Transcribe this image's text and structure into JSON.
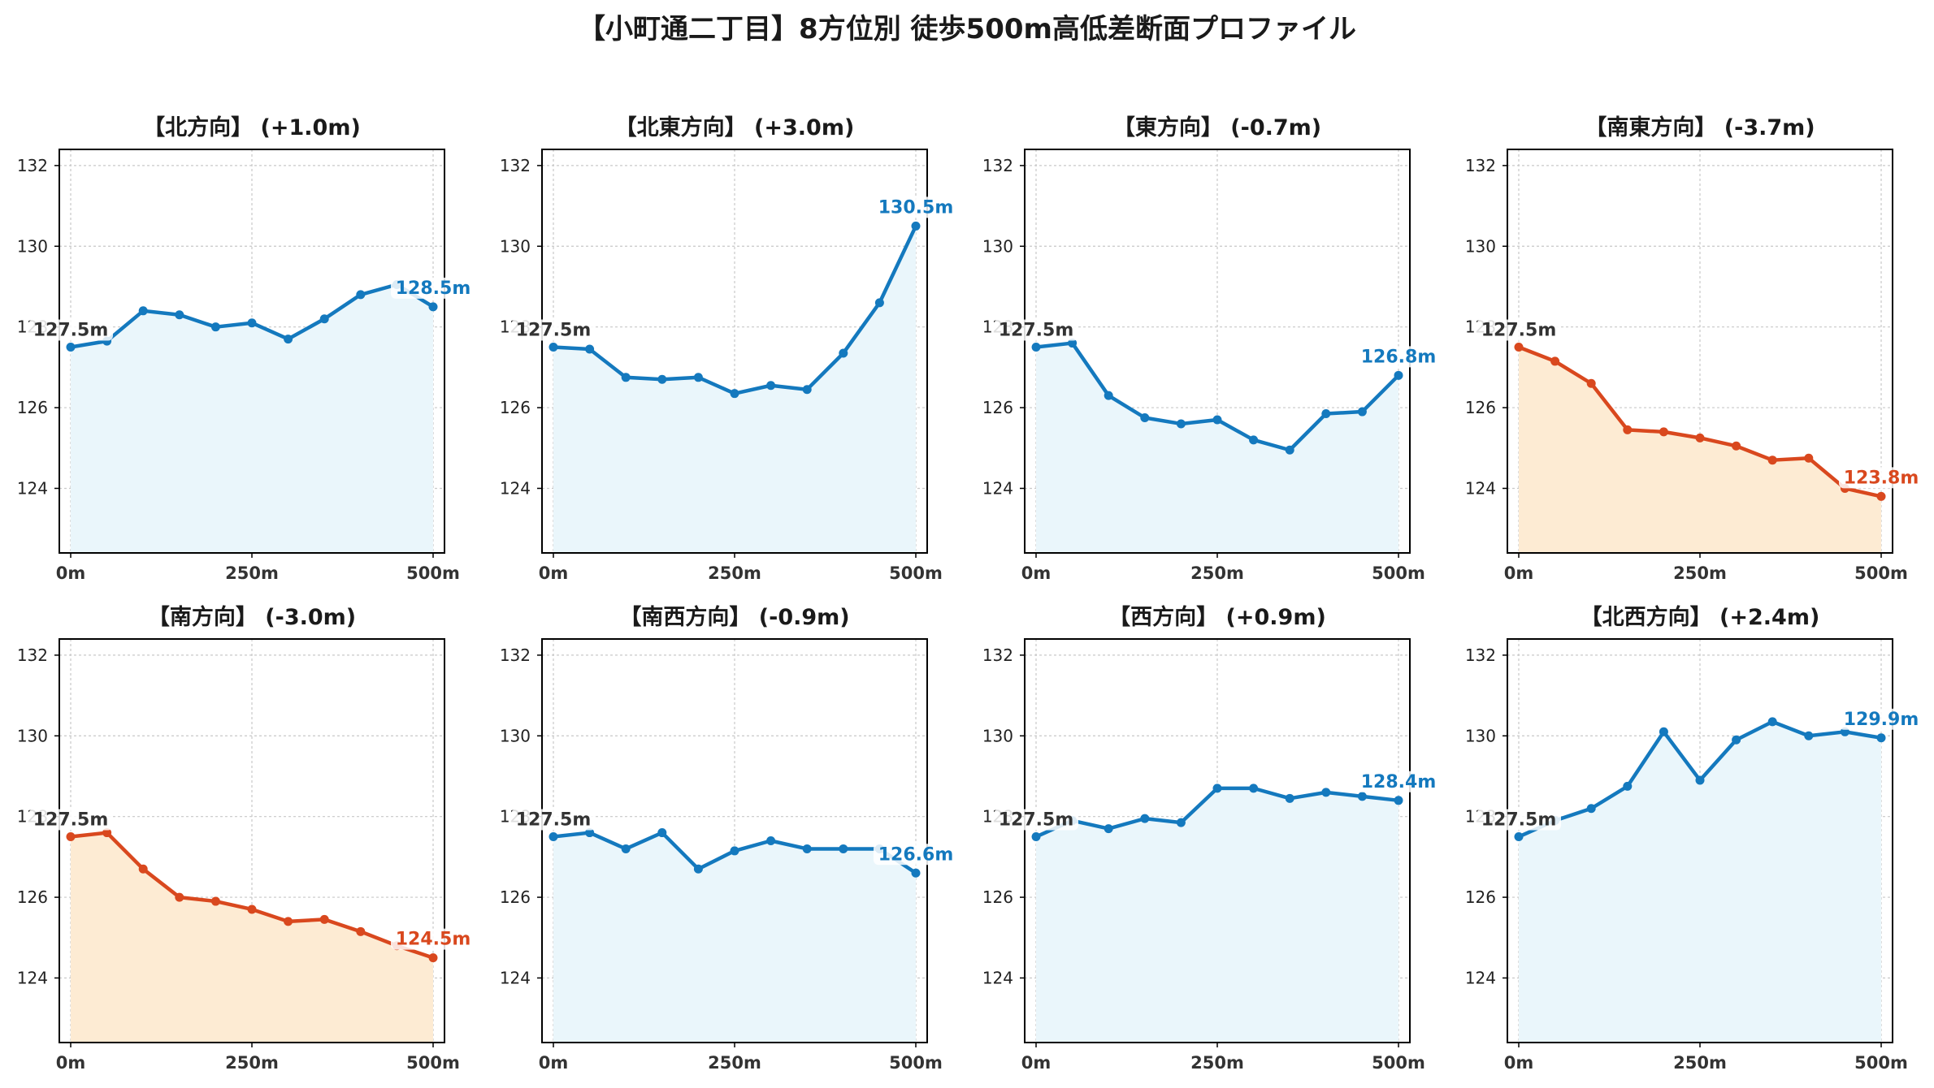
{
  "title": "【小町通二丁目】8方位別 徒歩500m高低差断面プロファイル",
  "colors": {
    "up": "#1479BE",
    "up_fill": "#EAF6FB",
    "down": "#D9481E",
    "down_fill": "#FDEBD3",
    "start_label": "#333333"
  },
  "chart_data": [
    {
      "type": "line",
      "title": "【北方向】 (+1.0m)",
      "trend": "up",
      "start_label": "127.5m",
      "end_label": "128.5m",
      "x": [
        0,
        50,
        100,
        150,
        200,
        250,
        300,
        350,
        400,
        450,
        500
      ],
      "xticks": [
        "0m",
        "250m",
        "500m"
      ],
      "yticks": [
        124,
        126,
        128,
        130,
        132
      ],
      "ylim": [
        122.4,
        132.4
      ],
      "values": [
        127.5,
        127.65,
        128.4,
        128.3,
        128.0,
        128.1,
        127.7,
        128.2,
        128.8,
        129.05,
        128.5
      ]
    },
    {
      "type": "line",
      "title": "【北東方向】 (+3.0m)",
      "trend": "up",
      "start_label": "127.5m",
      "end_label": "130.5m",
      "x": [
        0,
        50,
        100,
        150,
        200,
        250,
        300,
        350,
        400,
        450,
        500
      ],
      "xticks": [
        "0m",
        "250m",
        "500m"
      ],
      "yticks": [
        124,
        126,
        128,
        130,
        132
      ],
      "ylim": [
        122.4,
        132.4
      ],
      "values": [
        127.5,
        127.45,
        126.75,
        126.7,
        126.75,
        126.35,
        126.55,
        126.45,
        127.35,
        128.6,
        130.5
      ]
    },
    {
      "type": "line",
      "title": "【東方向】 (-0.7m)",
      "trend": "up",
      "start_label": "127.5m",
      "end_label": "126.8m",
      "x": [
        0,
        50,
        100,
        150,
        200,
        250,
        300,
        350,
        400,
        450,
        500
      ],
      "xticks": [
        "0m",
        "250m",
        "500m"
      ],
      "yticks": [
        124,
        126,
        128,
        130,
        132
      ],
      "ylim": [
        122.4,
        132.4
      ],
      "values": [
        127.5,
        127.6,
        126.3,
        125.75,
        125.6,
        125.7,
        125.2,
        124.95,
        125.85,
        125.9,
        126.8
      ]
    },
    {
      "type": "line",
      "title": "【南東方向】 (-3.7m)",
      "trend": "down",
      "start_label": "127.5m",
      "end_label": "123.8m",
      "x": [
        0,
        50,
        100,
        150,
        200,
        250,
        300,
        350,
        400,
        450,
        500
      ],
      "xticks": [
        "0m",
        "250m",
        "500m"
      ],
      "yticks": [
        124,
        126,
        128,
        130,
        132
      ],
      "ylim": [
        122.4,
        132.4
      ],
      "values": [
        127.5,
        127.15,
        126.6,
        125.45,
        125.4,
        125.25,
        125.05,
        124.7,
        124.75,
        124.0,
        123.8
      ]
    },
    {
      "type": "line",
      "title": "【南方向】 (-3.0m)",
      "trend": "down",
      "start_label": "127.5m",
      "end_label": "124.5m",
      "x": [
        0,
        50,
        100,
        150,
        200,
        250,
        300,
        350,
        400,
        450,
        500
      ],
      "xticks": [
        "0m",
        "250m",
        "500m"
      ],
      "yticks": [
        124,
        126,
        128,
        130,
        132
      ],
      "ylim": [
        122.4,
        132.4
      ],
      "values": [
        127.5,
        127.6,
        126.7,
        126.0,
        125.9,
        125.7,
        125.4,
        125.45,
        125.15,
        124.8,
        124.5
      ]
    },
    {
      "type": "line",
      "title": "【南西方向】 (-0.9m)",
      "trend": "up",
      "start_label": "127.5m",
      "end_label": "126.6m",
      "x": [
        0,
        50,
        100,
        150,
        200,
        250,
        300,
        350,
        400,
        450,
        500
      ],
      "xticks": [
        "0m",
        "250m",
        "500m"
      ],
      "yticks": [
        124,
        126,
        128,
        130,
        132
      ],
      "ylim": [
        122.4,
        132.4
      ],
      "values": [
        127.5,
        127.6,
        127.2,
        127.6,
        126.7,
        127.15,
        127.4,
        127.2,
        127.2,
        127.2,
        126.6
      ]
    },
    {
      "type": "line",
      "title": "【西方向】 (+0.9m)",
      "trend": "up",
      "start_label": "127.5m",
      "end_label": "128.4m",
      "x": [
        0,
        50,
        100,
        150,
        200,
        250,
        300,
        350,
        400,
        450,
        500
      ],
      "xticks": [
        "0m",
        "250m",
        "500m"
      ],
      "yticks": [
        124,
        126,
        128,
        130,
        132
      ],
      "ylim": [
        122.4,
        132.4
      ],
      "values": [
        127.5,
        127.9,
        127.7,
        127.95,
        127.85,
        128.7,
        128.7,
        128.45,
        128.6,
        128.5,
        128.4
      ]
    },
    {
      "type": "line",
      "title": "【北西方向】 (+2.4m)",
      "trend": "up",
      "start_label": "127.5m",
      "end_label": "129.9m",
      "x": [
        0,
        50,
        100,
        150,
        200,
        250,
        300,
        350,
        400,
        450,
        500
      ],
      "xticks": [
        "0m",
        "250m",
        "500m"
      ],
      "yticks": [
        124,
        126,
        128,
        130,
        132
      ],
      "ylim": [
        122.4,
        132.4
      ],
      "values": [
        127.5,
        127.9,
        128.2,
        128.75,
        130.1,
        128.9,
        129.9,
        130.35,
        130.0,
        130.1,
        129.95
      ]
    }
  ]
}
